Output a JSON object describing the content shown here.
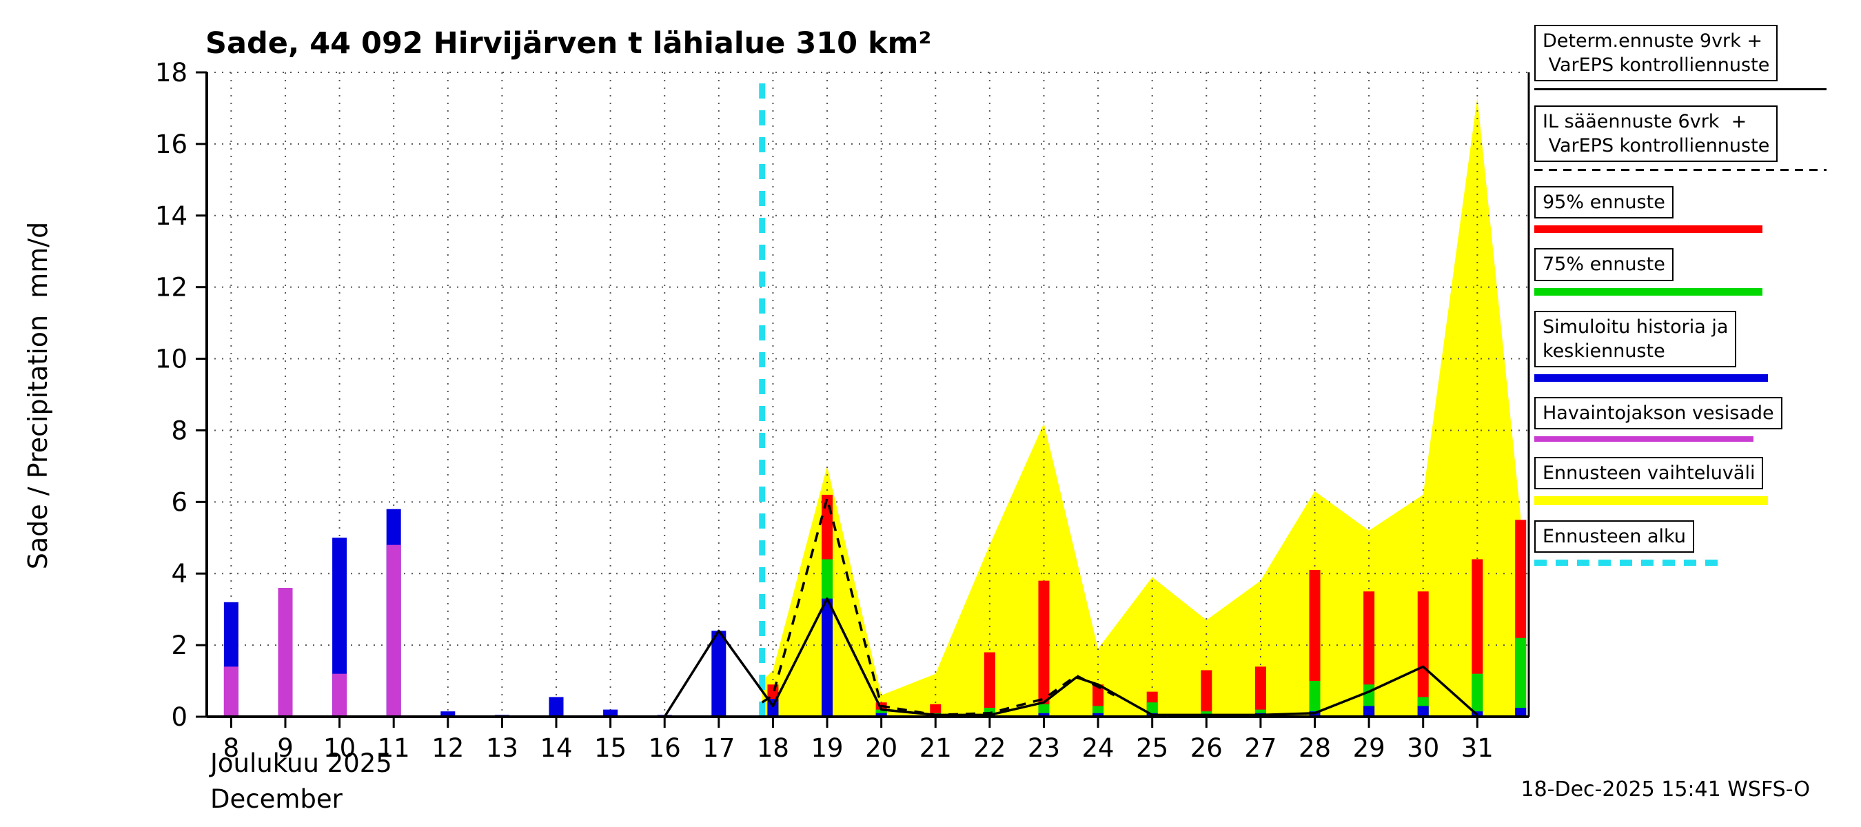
{
  "header": {
    "title": "Sade, 44 092 Hirvijärven t lähialue 310 km²"
  },
  "axes": {
    "ylabel": "Sade / Precipitation  mm/d",
    "xlabel_month_fi": "Joulukuu 2025",
    "xlabel_month_en": "December"
  },
  "footer": {
    "timestamp": "18-Dec-2025 15:41 WSFS-O"
  },
  "colors": {
    "red": "#ff0000",
    "green": "#00d800",
    "blue": "#0000e0",
    "magenta": "#c83cd2",
    "yellow": "#ffff00",
    "cyan": "#22dff0",
    "black": "#000000",
    "grid": "#555555"
  },
  "legend": {
    "entries": [
      {
        "id": "determ-ennuste",
        "lines": [
          "Determ.ennuste 9vrk +",
          " VarEPS kontrolliennuste"
        ],
        "sample": {
          "color": "#000000",
          "thickness": 3,
          "dash": null,
          "width_pct": 100
        }
      },
      {
        "id": "il-saaennuste",
        "lines": [
          "IL sääennuste 6vrk  +",
          " VarEPS kontrolliennuste"
        ],
        "sample": {
          "color": "#000000",
          "thickness": 3,
          "dash": [
            12,
            9
          ],
          "width_pct": 100
        }
      },
      {
        "id": "95-ennuste",
        "lines": [
          "95% ennuste"
        ],
        "sample": {
          "color": "#ff0000",
          "thickness": 11,
          "dash": null,
          "width_pct": 78
        }
      },
      {
        "id": "75-ennuste",
        "lines": [
          "75% ennuste"
        ],
        "sample": {
          "color": "#00d800",
          "thickness": 11,
          "dash": null,
          "width_pct": 78
        }
      },
      {
        "id": "simuloitu-historia",
        "lines": [
          "Simuloitu historia ja",
          "keskiennuste"
        ],
        "sample": {
          "color": "#0000e0",
          "thickness": 11,
          "dash": null,
          "width_pct": 80
        }
      },
      {
        "id": "havaintojakson-vesisade",
        "lines": [
          "Havaintojakson vesisade"
        ],
        "sample": {
          "color": "#c83cd2",
          "thickness": 8,
          "dash": null,
          "width_pct": 75
        }
      },
      {
        "id": "ennusteen-vaihteluvali",
        "lines": [
          "Ennusteen vaihteluväli"
        ],
        "sample": {
          "color": "#ffff00",
          "thickness": 13,
          "dash": null,
          "width_pct": 80
        }
      },
      {
        "id": "ennusteen-alku",
        "lines": [
          "Ennusteen alku"
        ],
        "sample": {
          "color": "#22dff0",
          "thickness": 9,
          "dash": [
            18,
            13
          ],
          "width_pct": 64
        }
      }
    ]
  },
  "chart_data": {
    "type": "bar+line+area",
    "title": "Sade, 44 092 Hirvijärven t lähialue 310 km²",
    "ylabel": "Sade / Precipitation  mm/d",
    "xlabel": "Joulukuu 2025 / December",
    "ylim": [
      0,
      18
    ],
    "yticks": [
      0,
      2,
      4,
      6,
      8,
      10,
      12,
      14,
      16,
      18
    ],
    "days": [
      8,
      9,
      10,
      11,
      12,
      13,
      14,
      15,
      16,
      17,
      18,
      19,
      20,
      21,
      22,
      23,
      24,
      25,
      26,
      27,
      28,
      29,
      30,
      31
    ],
    "grid": true,
    "legend_position": "right",
    "observed_bars": [
      {
        "day": 8,
        "sim_blue": 3.2,
        "obs_magenta": 1.4
      },
      {
        "day": 9,
        "sim_blue": 3.6,
        "obs_magenta": 3.6
      },
      {
        "day": 10,
        "sim_blue": 5.0,
        "obs_magenta": 1.2
      },
      {
        "day": 11,
        "sim_blue": 5.8,
        "obs_magenta": 4.8
      },
      {
        "day": 12,
        "sim_blue": 0.15,
        "obs_magenta": 0
      },
      {
        "day": 13,
        "sim_blue": 0.05,
        "obs_magenta": 0
      },
      {
        "day": 14,
        "sim_blue": 0.55,
        "obs_magenta": 0
      },
      {
        "day": 15,
        "sim_blue": 0.2,
        "obs_magenta": 0
      },
      {
        "day": 16,
        "sim_blue": 0.05,
        "obs_magenta": 0
      },
      {
        "day": 17,
        "sim_blue": 2.4,
        "obs_magenta": 0
      }
    ],
    "forecast_bars": [
      {
        "day": 18,
        "p95_red": 0.9,
        "p75_green": 0.35,
        "mean_blue": 0.5
      },
      {
        "day": 19,
        "p95_red": 6.2,
        "p75_green": 4.4,
        "mean_blue": 3.3
      },
      {
        "day": 20,
        "p95_red": 0.4,
        "p75_green": 0.2,
        "mean_blue": 0.1
      },
      {
        "day": 21,
        "p95_red": 0.35,
        "p75_green": 0.1,
        "mean_blue": 0.05
      },
      {
        "day": 22,
        "p95_red": 1.8,
        "p75_green": 0.25,
        "mean_blue": 0.05
      },
      {
        "day": 23,
        "p95_red": 3.8,
        "p75_green": 0.35,
        "mean_blue": 0.1
      },
      {
        "day": 24,
        "p95_red": 0.9,
        "p75_green": 0.3,
        "mean_blue": 0.1
      },
      {
        "day": 25,
        "p95_red": 0.7,
        "p75_green": 0.4,
        "mean_blue": 0.1
      },
      {
        "day": 26,
        "p95_red": 1.3,
        "p75_green": 0.15,
        "mean_blue": 0.05
      },
      {
        "day": 27,
        "p95_red": 1.4,
        "p75_green": 0.2,
        "mean_blue": 0.1
      },
      {
        "day": 28,
        "p95_red": 4.1,
        "p75_green": 1.0,
        "mean_blue": 0.15
      },
      {
        "day": 29,
        "p95_red": 3.5,
        "p75_green": 0.9,
        "mean_blue": 0.3
      },
      {
        "day": 30,
        "p95_red": 3.5,
        "p75_green": 0.55,
        "mean_blue": 0.3
      },
      {
        "day": 31,
        "p95_red": 4.4,
        "p75_green": 1.2,
        "mean_blue": 0.15
      },
      {
        "day": 31.8,
        "p95_red": 5.5,
        "p75_green": 2.2,
        "mean_blue": 0.25
      }
    ],
    "range_band": {
      "x": [
        17.8,
        18,
        19,
        20,
        21,
        22,
        23,
        24,
        25,
        26,
        27,
        28,
        29,
        30,
        31,
        31.8
      ],
      "upper": [
        1.0,
        1.3,
        7.0,
        0.6,
        1.2,
        4.8,
        8.2,
        1.9,
        3.9,
        2.7,
        3.8,
        6.3,
        5.2,
        6.2,
        17.3,
        5.6
      ],
      "lower": [
        0,
        0,
        0,
        0,
        0,
        0,
        0,
        0,
        0,
        0,
        0,
        0,
        0,
        0,
        0,
        0
      ]
    },
    "determ_line": {
      "x": [
        16,
        17,
        18,
        19,
        20,
        21,
        22,
        23,
        23.6,
        24,
        25,
        26,
        27,
        28,
        29,
        30,
        31
      ],
      "y": [
        0,
        2.4,
        0.3,
        3.3,
        0.2,
        0.05,
        0.05,
        0.4,
        1.1,
        0.9,
        0.05,
        0.05,
        0.05,
        0.1,
        0.7,
        1.4,
        0.05
      ]
    },
    "il_line": {
      "x": [
        17.8,
        18,
        19,
        20,
        21,
        22,
        23,
        23.6,
        24.3
      ],
      "y": [
        0.4,
        0.6,
        6.1,
        0.3,
        0.05,
        0.1,
        0.5,
        1.15,
        0.6
      ]
    },
    "forecast_start": {
      "x": 17.8,
      "top": 17.8
    }
  }
}
